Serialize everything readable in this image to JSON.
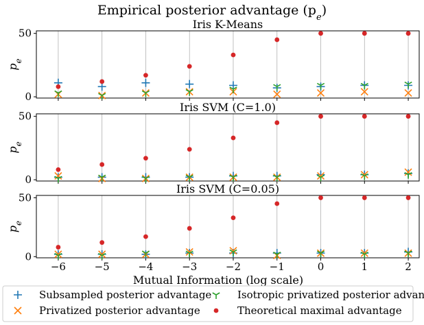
{
  "figure": {
    "title": "Empirical posterior advantage (p",
    "title_sub": "e",
    "title_end": ")",
    "xlabel": "Mutual Information (log scale)"
  },
  "legend": {
    "items": [
      {
        "label": "Subsampled posterior advantage",
        "marker": "plus",
        "color": "#1f77b4"
      },
      {
        "label": "Isotropic privatized posterior advantage",
        "marker": "tri",
        "color": "#2ca02c"
      },
      {
        "label": "Privatized posterior advantage",
        "marker": "x",
        "color": "#ff7f0e"
      },
      {
        "label": "Theoretical maximal advantage",
        "marker": "dot",
        "color": "#d62728"
      }
    ]
  },
  "chart_data": [
    {
      "type": "scatter",
      "title": "Iris K-Means",
      "ylabel": "p_e",
      "ylabel_main": "p",
      "ylabel_sub": "e",
      "x": [
        -6,
        -5,
        -4,
        -3,
        -2,
        -1,
        0,
        1,
        2
      ],
      "xticks": [
        "−6",
        "−5",
        "−4",
        "−3",
        "−2",
        "−1",
        "0",
        "1",
        "2"
      ],
      "yticks": [
        0,
        50
      ],
      "ylim": [
        -1,
        52
      ],
      "xlim": [
        -6.5,
        2.25
      ],
      "grid": "x",
      "series": [
        {
          "name": "Subsampled posterior advantage",
          "marker": "plus",
          "color": "#1f77b4",
          "values": [
            11,
            8,
            11,
            10,
            9,
            7,
            8,
            9,
            9
          ]
        },
        {
          "name": "Isotropic privatized posterior advantage",
          "marker": "tri",
          "color": "#2ca02c",
          "values": [
            3,
            1,
            3,
            4,
            6,
            8,
            9,
            9,
            10
          ]
        },
        {
          "name": "Privatized posterior advantage",
          "marker": "x",
          "color": "#ff7f0e",
          "values": [
            2,
            1,
            3,
            4,
            4,
            2,
            3,
            4,
            3
          ]
        },
        {
          "name": "Theoretical maximal advantage",
          "marker": "dot",
          "color": "#d62728",
          "values": [
            8,
            12,
            17,
            24,
            33,
            45,
            50,
            50,
            50
          ]
        }
      ]
    },
    {
      "type": "scatter",
      "title": "Iris SVM (C=1.0)",
      "ylabel": "p_e",
      "ylabel_main": "p",
      "ylabel_sub": "e",
      "x": [
        -6,
        -5,
        -4,
        -3,
        -2,
        -1,
        0,
        1,
        2
      ],
      "xticks": [
        "−6",
        "−5",
        "−4",
        "−3",
        "−2",
        "−1",
        "0",
        "1",
        "2"
      ],
      "yticks": [
        0,
        50
      ],
      "ylim": [
        -1,
        52
      ],
      "xlim": [
        -6.5,
        2.25
      ],
      "grid": "x",
      "series": [
        {
          "name": "Subsampled posterior advantage",
          "marker": "plus",
          "color": "#1f77b4",
          "values": [
            2,
            2,
            2,
            2,
            3,
            3,
            4,
            4,
            5
          ]
        },
        {
          "name": "Isotropic privatized posterior advantage",
          "marker": "tri",
          "color": "#2ca02c",
          "values": [
            1,
            2,
            1,
            2,
            2,
            2,
            2,
            3,
            4
          ]
        },
        {
          "name": "Privatized posterior advantage",
          "marker": "x",
          "color": "#ff7f0e",
          "values": [
            3,
            1,
            1,
            2,
            2,
            2,
            3,
            4,
            6
          ]
        },
        {
          "name": "Theoretical maximal advantage",
          "marker": "dot",
          "color": "#d62728",
          "values": [
            8,
            12,
            17,
            24,
            33,
            45,
            50,
            50,
            50
          ]
        }
      ]
    },
    {
      "type": "scatter",
      "title": "Iris SVM (C=0.05)",
      "ylabel": "p_e",
      "ylabel_main": "p",
      "ylabel_sub": "e",
      "x": [
        -6,
        -5,
        -4,
        -3,
        -2,
        -1,
        0,
        1,
        2
      ],
      "xticks": [
        "−6",
        "−5",
        "−4",
        "−3",
        "−2",
        "−1",
        "0",
        "1",
        "2"
      ],
      "yticks": [
        0,
        50
      ],
      "ylim": [
        -1,
        52
      ],
      "xlim": [
        -6.5,
        2.25
      ],
      "grid": "x",
      "series": [
        {
          "name": "Subsampled posterior advantage",
          "marker": "plus",
          "color": "#1f77b4",
          "values": [
            2,
            2,
            2,
            3,
            3,
            3,
            3,
            3,
            4
          ]
        },
        {
          "name": "Isotropic privatized posterior advantage",
          "marker": "tri",
          "color": "#2ca02c",
          "values": [
            1,
            1,
            3,
            3,
            4,
            2,
            3,
            2,
            3
          ]
        },
        {
          "name": "Privatized posterior advantage",
          "marker": "x",
          "color": "#ff7f0e",
          "values": [
            2,
            2,
            2,
            4,
            5,
            1,
            3,
            3,
            3
          ]
        },
        {
          "name": "Theoretical maximal advantage",
          "marker": "dot",
          "color": "#d62728",
          "values": [
            8,
            12,
            17,
            24,
            33,
            45,
            50,
            50,
            50
          ]
        }
      ]
    }
  ]
}
